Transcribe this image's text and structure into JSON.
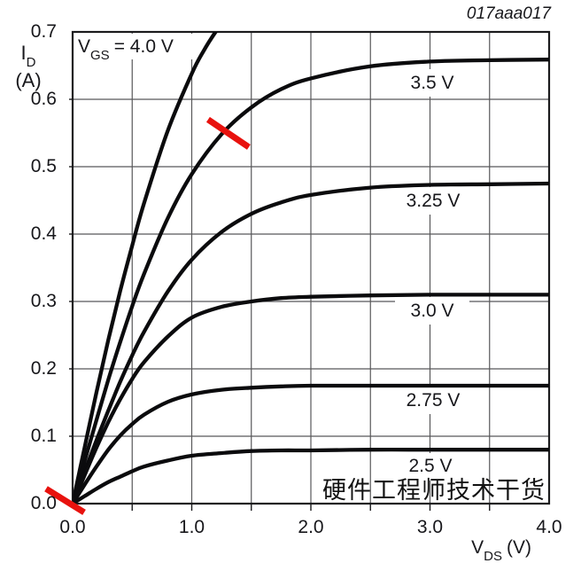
{
  "figure_code": "017aaa017",
  "watermark": "硬件工程师技术干货",
  "y_axis": {
    "symbol": "I",
    "sub": "D",
    "unit": "(A)",
    "ticks": [
      "0.0",
      "0.1",
      "0.2",
      "0.3",
      "0.4",
      "0.5",
      "0.6",
      "0.7"
    ]
  },
  "x_axis": {
    "symbol": "V",
    "sub": "DS",
    "unit": "(V)",
    "ticks": [
      "0.0",
      "1.0",
      "2.0",
      "3.0",
      "4.0"
    ]
  },
  "gate_label": {
    "symbol": "V",
    "sub": "GS",
    "rest": "= 4.0 V"
  },
  "chart_data": {
    "type": "line",
    "title": "MOSFET output characteristics",
    "xlabel": "VDS (V)",
    "ylabel": "ID (A)",
    "xlim": [
      0,
      4
    ],
    "ylim": [
      0,
      0.7
    ],
    "x_grid_step": 0.5,
    "y_grid_step": 0.1,
    "grid": true,
    "colors": {
      "curve": "#0b0b0d",
      "grid": "#58585a",
      "frame": "#1b1b1d",
      "annotation": "#e8120e",
      "text": "#17171b"
    },
    "series": [
      {
        "name": "VGS = 4.0 V",
        "label": "",
        "x": [
          0,
          0.1,
          0.2,
          0.3,
          0.4,
          0.5,
          0.6,
          0.8,
          1.0,
          1.1,
          1.2,
          1.3
        ],
        "y": [
          0,
          0.083,
          0.165,
          0.243,
          0.316,
          0.383,
          0.446,
          0.554,
          0.638,
          0.672,
          0.7,
          0.724
        ]
      },
      {
        "name": "VGS = 3.5 V",
        "label": "3.5 V",
        "label_at": {
          "v": 3.019,
          "i": 0.624
        },
        "x": [
          0,
          0.1,
          0.2,
          0.3,
          0.4,
          0.5,
          0.6,
          0.8,
          1.0,
          1.25,
          1.5,
          1.75,
          2.0,
          2.5,
          3.0,
          3.5,
          4.0
        ],
        "y": [
          0,
          0.063,
          0.124,
          0.184,
          0.24,
          0.293,
          0.341,
          0.424,
          0.489,
          0.548,
          0.588,
          0.615,
          0.631,
          0.649,
          0.656,
          0.658,
          0.659
        ]
      },
      {
        "name": "VGS = 3.25 V",
        "label": "3.25 V",
        "label_at": {
          "v": 3.026,
          "i": 0.449
        },
        "x": [
          0,
          0.1,
          0.2,
          0.3,
          0.4,
          0.5,
          0.6,
          0.8,
          1.0,
          1.25,
          1.5,
          1.75,
          2.0,
          2.5,
          3.0,
          3.5,
          4.0
        ],
        "y": [
          0,
          0.047,
          0.094,
          0.138,
          0.181,
          0.22,
          0.255,
          0.315,
          0.362,
          0.403,
          0.43,
          0.447,
          0.458,
          0.469,
          0.473,
          0.474,
          0.475
        ]
      },
      {
        "name": "VGS = 3.0 V",
        "label": "3.0 V",
        "label_at": {
          "v": 3.019,
          "i": 0.286
        },
        "x": [
          0,
          0.1,
          0.2,
          0.3,
          0.4,
          0.5,
          0.6,
          0.8,
          1.0,
          1.25,
          1.5,
          1.75,
          2.0,
          2.5,
          3.0,
          3.5,
          4.0
        ],
        "y": [
          0,
          0.042,
          0.083,
          0.121,
          0.155,
          0.185,
          0.21,
          0.248,
          0.276,
          0.292,
          0.3,
          0.305,
          0.307,
          0.309,
          0.31,
          0.31,
          0.31
        ]
      },
      {
        "name": "VGS = 2.75 V",
        "label": "2.75 V",
        "label_at": {
          "v": 3.026,
          "i": 0.153
        },
        "x": [
          0,
          0.1,
          0.2,
          0.3,
          0.4,
          0.5,
          0.6,
          0.8,
          1.0,
          1.25,
          1.5,
          1.75,
          2.0,
          2.5,
          3.0,
          3.5,
          4.0
        ],
        "y": [
          0,
          0.028,
          0.055,
          0.08,
          0.101,
          0.118,
          0.132,
          0.151,
          0.162,
          0.169,
          0.172,
          0.174,
          0.175,
          0.175,
          0.175,
          0.175,
          0.175
        ]
      },
      {
        "name": "VGS = 2.5 V",
        "label": "2.5 V",
        "label_at": {
          "v": 3.004,
          "i": 0.055
        },
        "x": [
          0,
          0.1,
          0.2,
          0.3,
          0.4,
          0.5,
          0.6,
          0.8,
          1.0,
          1.25,
          1.5,
          1.75,
          2.0,
          2.5,
          3.0,
          3.5,
          4.0
        ],
        "y": [
          0,
          0.011,
          0.022,
          0.032,
          0.04,
          0.048,
          0.055,
          0.064,
          0.071,
          0.075,
          0.078,
          0.079,
          0.079,
          0.08,
          0.08,
          0.08,
          0.08
        ]
      }
    ],
    "annotations": [
      {
        "type": "red-slash",
        "v1": 1.137,
        "i1": 0.57,
        "v2": 1.479,
        "i2": 0.529
      },
      {
        "type": "red-slash",
        "v1": -0.223,
        "i1": 0.022,
        "v2": 0.097,
        "i2": -0.013
      }
    ]
  }
}
